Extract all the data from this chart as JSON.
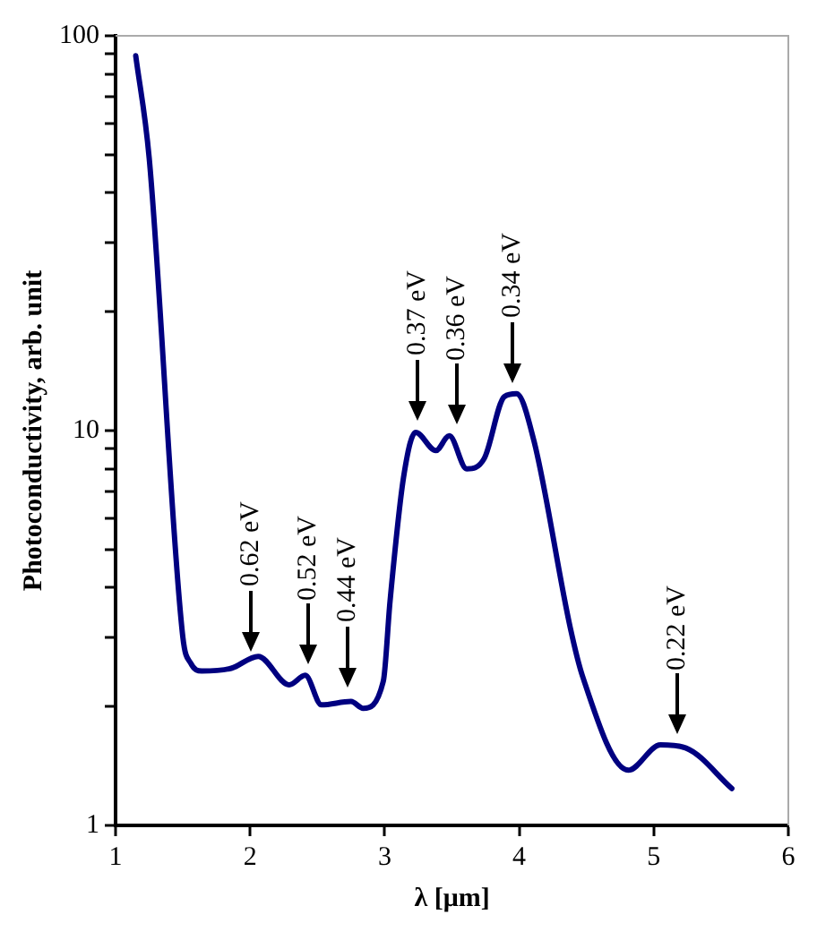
{
  "chart_data": {
    "type": "line",
    "xlabel": "λ [μm]",
    "ylabel": "Photoconductivity, arb. unit",
    "log": "y",
    "grid": false,
    "legend": false,
    "marker": "none",
    "line_style": "solid",
    "xlim": [
      1,
      6
    ],
    "xticks": [
      1,
      2,
      3,
      4,
      5,
      6
    ],
    "ylim": [
      1,
      100
    ],
    "yticks": [
      1,
      {
        "value": 2,
        "label": null
      },
      {
        "value": 3,
        "label": null
      },
      {
        "value": 4,
        "label": null
      },
      {
        "value": 5,
        "label": null
      },
      {
        "value": 6,
        "label": null
      },
      {
        "value": 7,
        "label": null
      },
      {
        "value": 8,
        "label": null
      },
      {
        "value": 9,
        "label": null
      },
      10,
      {
        "value": 20,
        "label": null
      },
      {
        "value": 30,
        "label": null
      },
      {
        "value": 40,
        "label": null
      },
      {
        "value": 50,
        "label": null
      },
      {
        "value": 60,
        "label": null
      },
      {
        "value": 70,
        "label": null
      },
      {
        "value": 80,
        "label": null
      },
      {
        "value": 90,
        "label": null
      },
      100
    ],
    "series": [
      {
        "color": "#000080",
        "x": [
          1.15,
          1.25,
          1.5,
          1.56,
          1.64,
          1.86,
          2.06,
          2.29,
          2.41,
          2.53,
          2.75,
          2.84,
          2.99,
          3.04,
          3.14,
          3.23,
          3.38,
          3.48,
          3.61,
          3.74,
          3.89,
          3.98,
          4.11,
          4.38,
          4.47,
          4.81,
          5.05,
          5.24,
          5.58
        ],
        "values": [
          89,
          49,
          3.0,
          2.57,
          2.46,
          2.5,
          2.68,
          2.27,
          2.4,
          2.02,
          2.06,
          1.98,
          2.32,
          3.7,
          7.6,
          9.9,
          8.9,
          9.7,
          8.0,
          8.5,
          12.2,
          12.4,
          9.4,
          3.16,
          2.39,
          1.38,
          1.6,
          1.57,
          1.24
        ]
      }
    ],
    "annotations": [
      {
        "text": "0.62 eV",
        "x": 2.0,
        "y": 2.6
      },
      {
        "text": "0.52 eV",
        "x": 2.43,
        "y": 2.4
      },
      {
        "text": "0.44 eV",
        "x": 2.73,
        "y": 2.1
      },
      {
        "text": "0.37 eV",
        "x": 3.25,
        "y": 10
      },
      {
        "text": "0.36 eV",
        "x": 3.53,
        "y": 9.7
      },
      {
        "text": "0.34 eV",
        "x": 3.95,
        "y": 12.4
      },
      {
        "text": "0.22 eV",
        "x": 5.17,
        "y": 1.6
      }
    ]
  }
}
